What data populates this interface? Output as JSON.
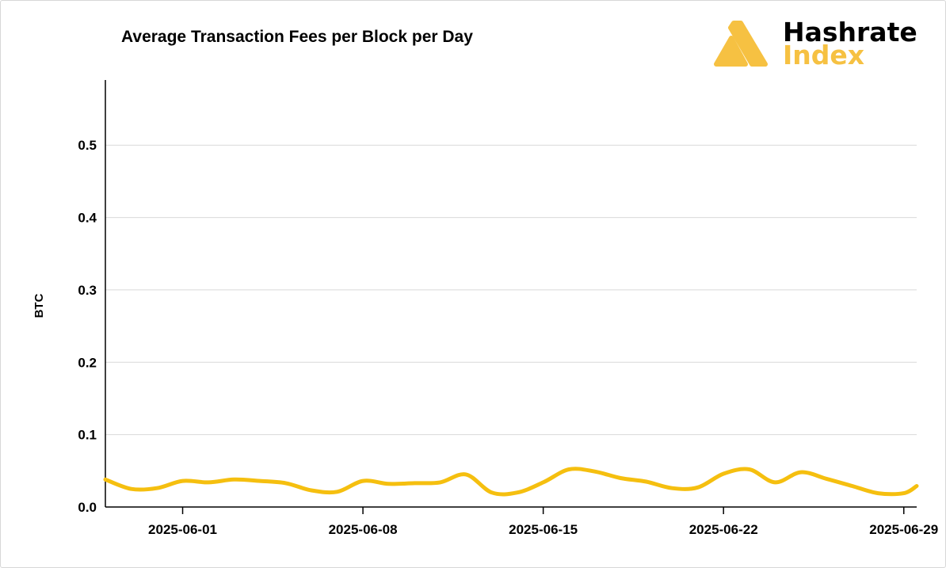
{
  "brand": {
    "word1": "Hashrate",
    "word2": "Index",
    "dark_color": "#000000",
    "accent_color": "#F6C142",
    "logo_icon": "hashrate-index-logo-icon"
  },
  "chart_data": {
    "type": "line",
    "title": "Average Transaction Fees per Block per Day",
    "xlabel": "",
    "ylabel": "BTC",
    "x_type": "date",
    "xlim": [
      "2025-05-29",
      "2025-06-29"
    ],
    "ylim": [
      0,
      0.59
    ],
    "x_ticks": [
      "2025-06-01",
      "2025-06-08",
      "2025-06-15",
      "2025-06-22",
      "2025-06-29"
    ],
    "y_ticks": [
      0.0,
      0.1,
      0.2,
      0.3,
      0.4,
      0.5
    ],
    "y_tick_labels": [
      "0.0",
      "0.1",
      "0.2",
      "0.3",
      "0.4",
      "0.5"
    ],
    "grid": "horizontal",
    "legend": "none",
    "line_color": "#F5BF0F",
    "series": [
      {
        "name": "",
        "x": [
          "2025-05-29",
          "2025-05-30",
          "2025-05-31",
          "2025-06-01",
          "2025-06-02",
          "2025-06-03",
          "2025-06-04",
          "2025-06-05",
          "2025-06-06",
          "2025-06-07",
          "2025-06-08",
          "2025-06-09",
          "2025-06-10",
          "2025-06-11",
          "2025-06-12",
          "2025-06-13",
          "2025-06-14",
          "2025-06-15",
          "2025-06-16",
          "2025-06-17",
          "2025-06-18",
          "2025-06-19",
          "2025-06-20",
          "2025-06-21",
          "2025-06-22",
          "2025-06-23",
          "2025-06-24",
          "2025-06-25",
          "2025-06-26",
          "2025-06-27",
          "2025-06-28",
          "2025-06-29",
          "2025-06-29T12:00"
        ],
        "values": [
          0.038,
          0.025,
          0.026,
          0.036,
          0.034,
          0.038,
          0.036,
          0.033,
          0.023,
          0.021,
          0.036,
          0.032,
          0.033,
          0.034,
          0.045,
          0.02,
          0.02,
          0.034,
          0.052,
          0.049,
          0.04,
          0.035,
          0.026,
          0.027,
          0.046,
          0.052,
          0.034,
          0.048,
          0.039,
          0.029,
          0.019,
          0.019,
          0.029
        ]
      }
    ]
  }
}
